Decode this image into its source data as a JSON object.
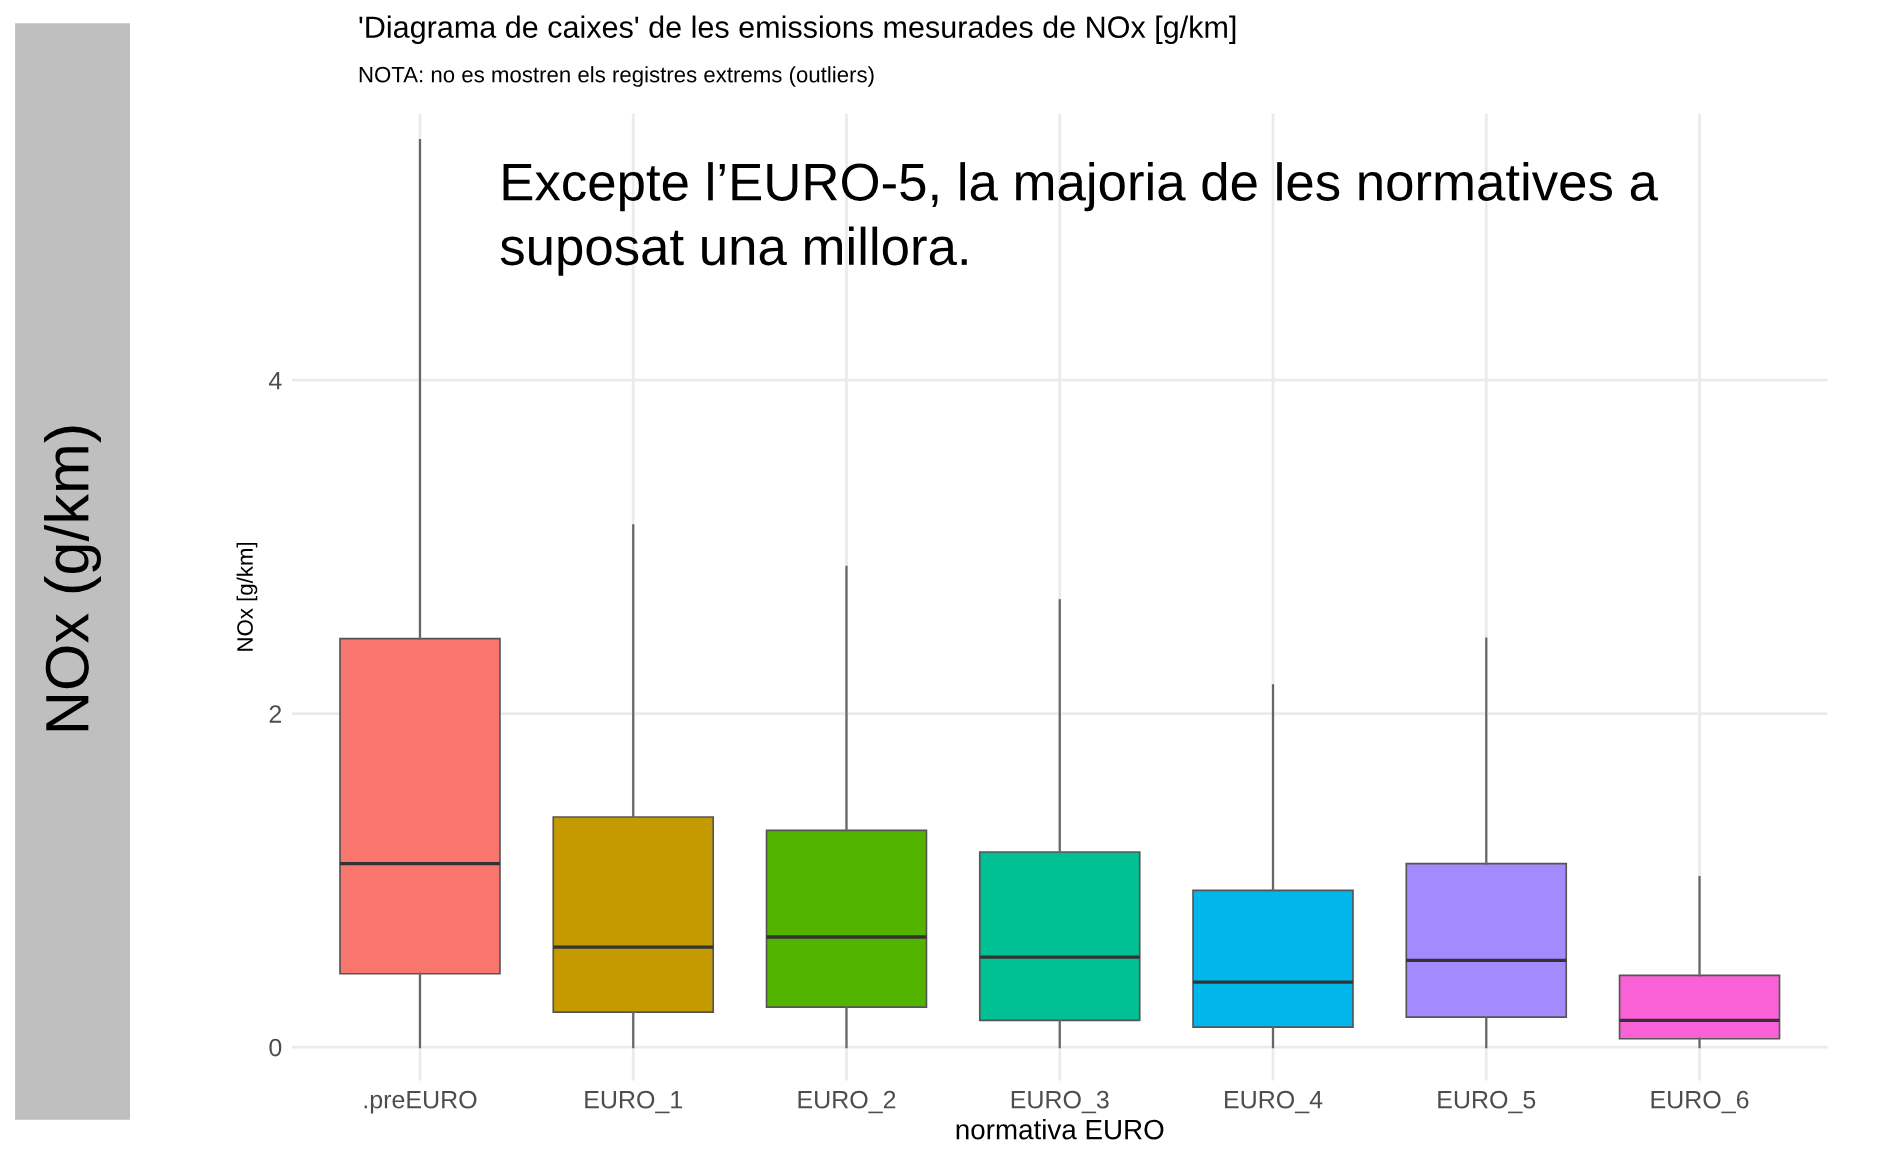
{
  "chart_data": {
    "type": "box",
    "title": "'Diagrama de caixes' de les emissions mesurades de NOx [g/km]",
    "subtitle": "NOTA: no es mostren els registres extrems (outliers)",
    "xlabel": "normativa EURO",
    "ylabel": "NOx [g/km]",
    "categories": [
      ".preEURO",
      "EURO_1",
      "EURO_2",
      "EURO_3",
      "EURO_4",
      "EURO_5",
      "EURO_6"
    ],
    "colors": [
      "#f8766d",
      "#c49a00",
      "#53b400",
      "#00c094",
      "#00b6eb",
      "#a58aff",
      "#fb61d7"
    ],
    "boxes": [
      {
        "low": 0,
        "q1": 0.44,
        "median": 1.1,
        "q3": 2.45,
        "high": 5.44
      },
      {
        "low": 0,
        "q1": 0.21,
        "median": 0.6,
        "q3": 1.38,
        "high": 3.13
      },
      {
        "low": 0,
        "q1": 0.24,
        "median": 0.66,
        "q3": 1.3,
        "high": 2.88
      },
      {
        "low": 0,
        "q1": 0.16,
        "median": 0.54,
        "q3": 1.17,
        "high": 2.68
      },
      {
        "low": 0,
        "q1": 0.12,
        "median": 0.39,
        "q3": 0.94,
        "high": 2.17
      },
      {
        "low": 0,
        "q1": 0.18,
        "median": 0.52,
        "q3": 1.1,
        "high": 2.45
      },
      {
        "low": 0,
        "q1": 0.05,
        "median": 0.16,
        "q3": 0.43,
        "high": 1.02
      }
    ],
    "ylim": [
      -0.2,
      5.6
    ],
    "yticks": [
      0,
      2,
      4
    ],
    "grid": true,
    "legend": false,
    "annotations": [
      "NOx (g/km)",
      "Excepte l’EURO-5, la majoria de les normatives a\nsuposat una millora."
    ]
  }
}
